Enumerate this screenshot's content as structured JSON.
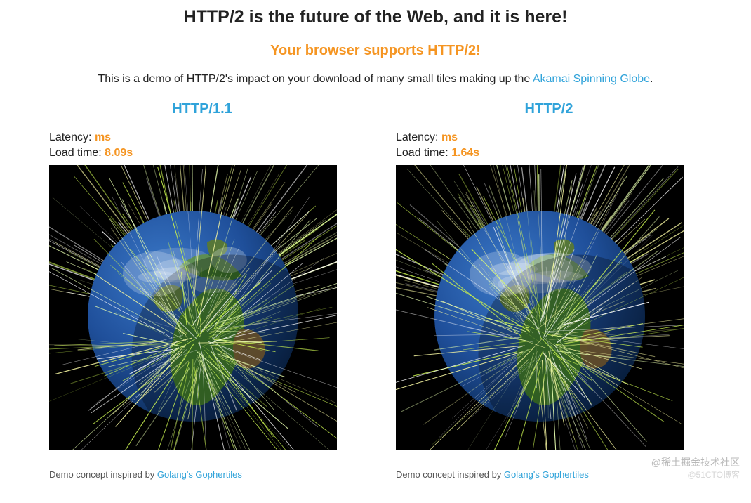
{
  "header": {
    "title": "HTTP/2 is the future of the Web, and it is here!",
    "subtitle": "Your browser supports HTTP/2!",
    "desc_prefix": "This is a demo of HTTP/2's impact on your download of many small tiles making up the ",
    "desc_link_text": "Akamai Spinning Globe",
    "desc_suffix": "."
  },
  "colors": {
    "accent": "#f59522",
    "link": "#30a3da",
    "text": "#222222",
    "background": "#ffffff",
    "globe_bg": "#000000"
  },
  "columns": [
    {
      "key": "http1",
      "title": "HTTP/1.1",
      "latency_label": "Latency: ",
      "latency_value": "ms",
      "loadtime_label": "Load time: ",
      "loadtime_value": "8.09s",
      "credit_prefix": "Demo concept inspired by ",
      "credit_link": "Golang's Gophertiles"
    },
    {
      "key": "http2",
      "title": "HTTP/2",
      "latency_label": "Latency: ",
      "latency_value": "ms",
      "loadtime_label": "Load time: ",
      "loadtime_value": "1.64s",
      "credit_prefix": "Demo concept inspired by ",
      "credit_link": "Golang's Gophertiles"
    }
  ],
  "globe": {
    "earth_colors": {
      "ocean_light": "#3a78c8",
      "ocean_dark": "#0b2a55",
      "land_green": "#4a8a2a",
      "land_brown": "#8a6a3a",
      "ice": "#e8f0f5"
    },
    "ray_colors": [
      "#c8f050",
      "#f5f5a0",
      "#e8ffb0",
      "#ffffff"
    ],
    "ray_count": 220
  },
  "watermarks": {
    "top": "@稀土掘金技术社区",
    "bottom": "@51CTO博客"
  }
}
